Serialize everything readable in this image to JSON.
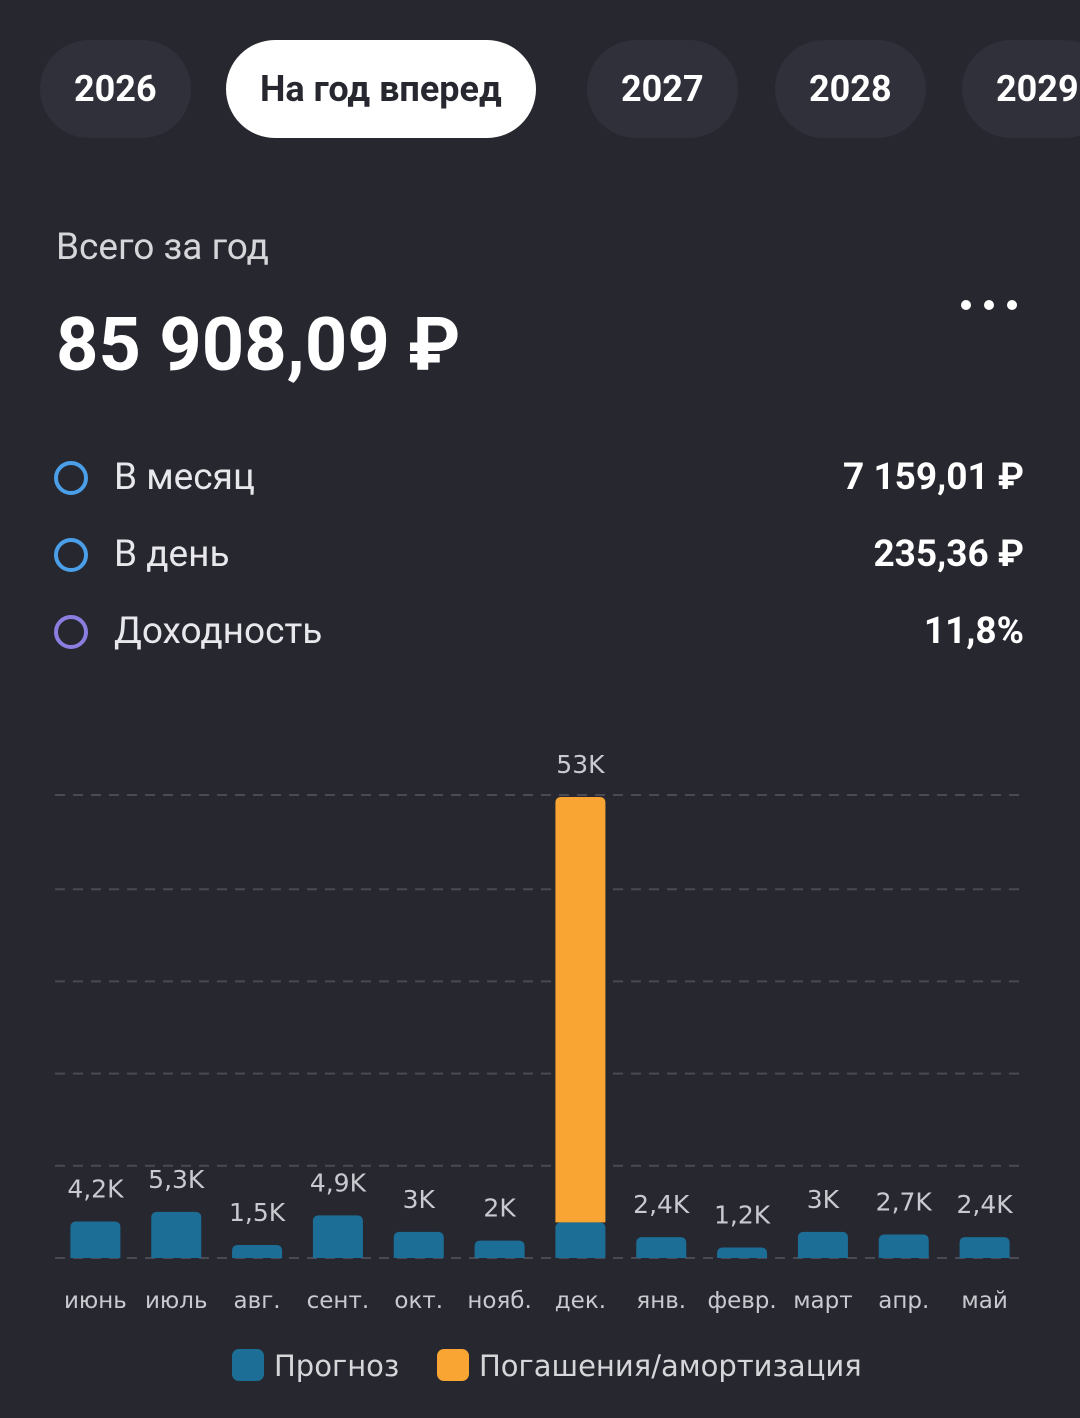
{
  "tabs": {
    "items": [
      "2026",
      "На год вперед",
      "2027",
      "2028",
      "2029"
    ],
    "active": 1
  },
  "summary": {
    "label": "Всего за год",
    "total": "85 908,09 ₽",
    "rows": [
      {
        "label": "В месяц",
        "value": "7 159,01 ₽",
        "color": "#4a9fe8"
      },
      {
        "label": "В день",
        "value": "235,36 ₽",
        "color": "#4a9fe8"
      },
      {
        "label": "Доходность",
        "value": "11,8%",
        "color": "#8a7fe0"
      }
    ]
  },
  "chart_data": {
    "type": "stacked_bar",
    "categories": [
      "июнь",
      "июль",
      "авг.",
      "сент.",
      "окт.",
      "нояб.",
      "дек.",
      "янв.",
      "февр.",
      "март",
      "апр.",
      "май"
    ],
    "series": [
      {
        "name": "Прогноз",
        "color": "#1c6e97",
        "values": [
          4200,
          5300,
          1500,
          4900,
          3000,
          2000,
          4100,
          2400,
          1200,
          3000,
          2700,
          2400
        ]
      },
      {
        "name": "Погашения/амортизация",
        "color": "#f9a533",
        "values": [
          null,
          null,
          null,
          null,
          null,
          null,
          48900,
          null,
          null,
          null,
          null,
          null
        ]
      }
    ],
    "totals": [
      4200,
      5300,
      1500,
      4900,
      3000,
      2000,
      53000,
      2400,
      1200,
      3000,
      2700,
      2400
    ],
    "total_labels": [
      "4,2K",
      "5,3K",
      "1,5K",
      "4,9K",
      "3K",
      "2K",
      "53K",
      "2,4K",
      "1,2K",
      "3K",
      "2,7K",
      "2,4K"
    ],
    "ylim": [
      0,
      53000
    ],
    "grid": true
  }
}
